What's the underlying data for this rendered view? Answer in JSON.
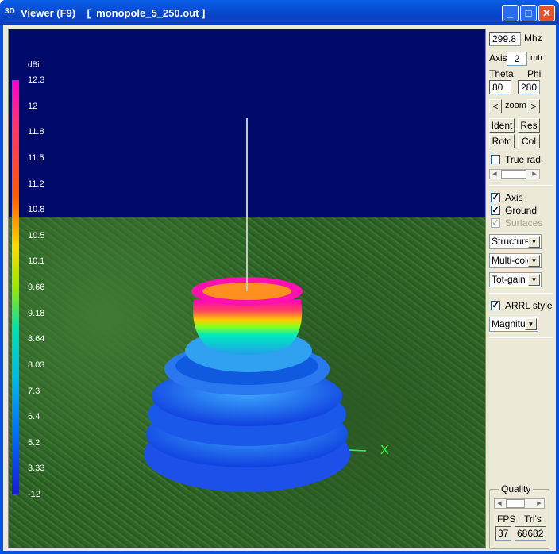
{
  "window": {
    "icon": "3D",
    "title": "Viewer (F9)",
    "file": "[  monopole_5_250.out ]",
    "min": "_",
    "max": "□",
    "close": "✕"
  },
  "colorbar": {
    "unit": "dBi",
    "labels": [
      "12.3",
      "12",
      "11.8",
      "11.5",
      "11.2",
      "10.8",
      "10.5",
      "10.1",
      "9.66",
      "9.18",
      "8.64",
      "8.03",
      "7.3",
      "6.4",
      "5.2",
      "3.33",
      "-12"
    ]
  },
  "scene": {
    "axis_label": "X",
    "ground_color": "#2f6426",
    "sky_color": "#000a6a"
  },
  "panel": {
    "freq": "299.8",
    "freq_unit": "Mhz",
    "axis_label": "Axis",
    "axis_value": "2",
    "axis_unit": "mtr",
    "theta_label": "Theta",
    "phi_label": "Phi",
    "theta": "80",
    "phi": "280",
    "zoom_prev": "<",
    "zoom_label": "zoom",
    "zoom_next": ">",
    "ident": "Ident",
    "res": "Res",
    "rotc": "Rotc",
    "col": "Col",
    "true_rad": "True rad.",
    "true_rad_checked": false,
    "axis_chk": "Axis",
    "axis_checked": true,
    "ground_chk": "Ground",
    "ground_checked": true,
    "surfaces_chk": "Surfaces",
    "surfaces_checked": true,
    "structure": "Structure",
    "color_mode": "Multi-colo",
    "gain": "Tot-gain",
    "arrl": "ARRL style",
    "arrl_checked": true,
    "magnitude": "Magnitu",
    "quality": "Quality",
    "fps_label": "FPS",
    "tris_label": "Tri's",
    "fps": "37",
    "tris": "68682"
  }
}
